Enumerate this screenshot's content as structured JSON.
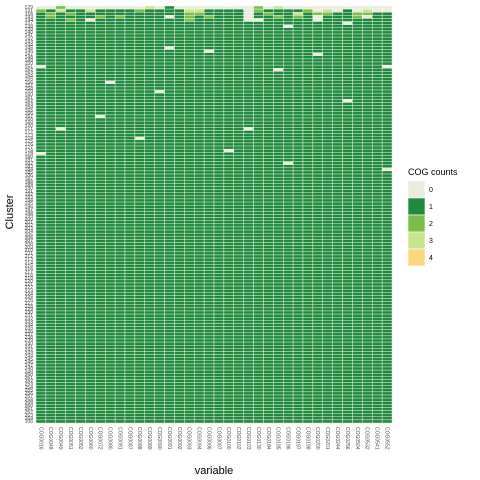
{
  "chart_data": {
    "type": "heatmap",
    "xlabel": "variable",
    "ylabel": "Cluster",
    "legend_title": "COG counts",
    "legend_position": "right",
    "legend": [
      {
        "value": 0,
        "color": "#ebebde"
      },
      {
        "value": 1,
        "color": "#1f8a3c"
      },
      {
        "value": 2,
        "color": "#7bbf4a"
      },
      {
        "value": 3,
        "color": "#c8e68e"
      },
      {
        "value": 4,
        "color": "#fed77f"
      }
    ],
    "x_labels": [
      "COG0016",
      "COG0048",
      "COG0049",
      "COG0051",
      "COG0052",
      "COG0060",
      "COG0072",
      "COG0080",
      "COG0081",
      "COG0087",
      "COG0088",
      "COG0089",
      "COG0090",
      "COG0091",
      "COG0092",
      "COG0093",
      "COG0094",
      "COG0096",
      "COG0097",
      "COG0100",
      "COG0102",
      "COG0103",
      "COG0130",
      "COG0184",
      "COG0185",
      "COG0186",
      "COG0197",
      "COG0198",
      "COG0200",
      "COG0201",
      "COG0244",
      "COG0256",
      "COG0504",
      "COG0532",
      "COG0541",
      "COG0552"
    ],
    "y_labels": [
      "129",
      "131",
      "116",
      "133",
      "134",
      "137",
      "138",
      "139",
      "140",
      "141",
      "142",
      "143",
      "144",
      "145",
      "146",
      "147",
      "148",
      "149",
      "150",
      "151",
      "152",
      "153",
      "154",
      "155",
      "156",
      "157",
      "158",
      "159",
      "160",
      "161",
      "162",
      "163",
      "164",
      "165",
      "166",
      "167",
      "168",
      "169",
      "170",
      "171",
      "172",
      "173",
      "174",
      "175",
      "176",
      "177",
      "178",
      "179",
      "180",
      "181",
      "182",
      "183",
      "184",
      "185",
      "186",
      "187",
      "188",
      "189",
      "190",
      "191",
      "192",
      "193",
      "194",
      "195",
      "196",
      "197",
      "198",
      "199",
      "200",
      "201",
      "202",
      "203",
      "204",
      "205",
      "206",
      "207",
      "208",
      "209",
      "210",
      "211",
      "212",
      "213",
      "214",
      "215",
      "216",
      "217",
      "218",
      "219",
      "220",
      "221",
      "222",
      "223",
      "224",
      "225",
      "226",
      "227",
      "228",
      "229",
      "230",
      "231",
      "232",
      "233",
      "234",
      "235",
      "236",
      "237",
      "238",
      "239",
      "240",
      "241",
      "242",
      "243",
      "244",
      "245",
      "246",
      "247",
      "248",
      "249",
      "250",
      "251",
      "252",
      "253",
      "254",
      "255",
      "256",
      "257",
      "258",
      "259",
      "260",
      "261",
      "262",
      "263",
      "264",
      "106"
    ],
    "matrix_rows": [
      "002000000003010000000020300000000000",
      "213113111121111331111021111203010300",
      "121211111111111221111012113122112211",
      "121111212111101212111011212101112011",
      "111210111111111211111001111101111111",
      "111111111111111111111111111111101111",
      "111111111111111111111111101111111111",
      "111111111111111111111111111111111111",
      "111111111111111111111111111111111111",
      "111111111111111111111111111111111111",
      "111111111111111111111111111111111111",
      "111111111111111111111111111111111111",
      "111111111111111111111111111111111111",
      "111111111111101111111111111111111111",
      "111111111111111110111111111111111111",
      "111111111111111111111111111101111111",
      "111111111111111111111111111111111111",
      "111111111111111111111111111111111111",
      "111111111111111111111111111111111111",
      "011111111111111111111111111111111110",
      "111111111111111111111111011111111111",
      "111111111111111111111111111111111111",
      "111111111111111111111111111111111111",
      "111111111111111111111111111111111111",
      "111111101111111111111111111111111111",
      "111111111111111111111111111111111111",
      "111111111111111111111111111111111111",
      "111111111111011111111111111111111111",
      "111111111111111111111111111111111111",
      "111111111111111111111111111111111111",
      "111111111111111111111111111111101111",
      "111111111111111111111111111111111111",
      "111111111111111111111111111111111111",
      "111111111111111111111111111111111111",
      "111111111111111111111111111111111111",
      "111111011111111111111111111111111111",
      "111111111111111111111111111111111111",
      "111111111111111111111111111111111111",
      "111111111111111111111111111111111111",
      "110111111111111111111011111111111111",
      "111111111111111111111111111111111111",
      "111111111111111111111111111111111111",
      "111111111101111111111111111111111111",
      "111111111111111111111111111111111111",
      "111111111111111111111111111111111111",
      "111111111111111111111111111111111111",
      "111111111111111111101111111111111111",
      "011111111111111111111111111111111111",
      "111111111111111111111111111111111111",
      "111111111111111111111111111111111111",
      "111111111111111111111111101111111111",
      "111111111111111111111111111111111111",
      "111111111111111111111111111111111110",
      "111111111111111111111111111111111111",
      "111111111111111111111111111111111111",
      "111111111111111111111111111111111111",
      "111111111111111111111111111111111111",
      "111111111111111111111111111111111111",
      "111111111111111111111111111111111111",
      "111111111111111111111111111111111111",
      "111111111111111111111111111111111111",
      "111111111111111111111111111111111111",
      "111111111111111111111111111111111111",
      "111111111111111111111111111111111111",
      "111111111111111111111111111111111111",
      "111111111111111111111111111111111111",
      "111111111111111111111111111111111111",
      "111111111111111111111111111111111111",
      "111111111111111111111111111111111111",
      "111111111111111111111111111111111111",
      "111111111111111111111111111111111111",
      "111111111111111111111111111111111111",
      "111111111111111111111111111111111111",
      "111111111111111111111111111111111111",
      "111111111111111111111111111111111111",
      "111111111111111111111111111111111111",
      "111111111111111111111111111111111111",
      "111111111111111111111111111111111111",
      "111111111111111111111111111111111111",
      "111111111111111111111111111111111111",
      "111111111111111111111111111111111111",
      "111111111111111111111111111111111111",
      "111111111111111111111111111111111111",
      "111111111111111111111111111111111111",
      "111111111111111111111111111111111111",
      "111111111111111111111111111111111111",
      "111111111111111111111111111111111111",
      "111111111111111111111111111111111111",
      "111111111111111111111111111111111111",
      "111111111111111111111111111111111111",
      "111111111111111111111111111111111111",
      "111111111111111111111111111111111111",
      "111111111111111111111111111111111111",
      "111111111111111111111111111111111111",
      "111111111111111111111111111111111111",
      "111111111111111111111111111111111111",
      "111111111111111111111111111111111111",
      "111111111111111111111111111111111111",
      "111111111111111111111111111111111111",
      "111111111111111111111111111111111111",
      "111111111111111111111111111111111111",
      "111111111111111111111111111111111111",
      "111111111111111111111111111111111111",
      "111111111111111111111111111111111111",
      "111111111111111111111111111111111111",
      "111111111111111111111111111111111111",
      "111111111111111111111111111111111111",
      "111111111111111111111111111111111111",
      "111111111111111111111111111111111111",
      "111111111111111111111111111111111111",
      "111111111111111111111111111111111111",
      "111111111111111111111111111111111111",
      "111111111111111111111111111111111111",
      "111111111111111111111111111111111111",
      "111111111111111111111111111111111111",
      "111111111111111111111111111111111111",
      "111111111111111111111111111111111111",
      "111111111111111111111111111111111111",
      "111111111111111111111111111111111111",
      "111111111111111111111111111111111111",
      "111111111111111111111111111111111111",
      "111111111111111111111111111111111111",
      "111111111111111111111111111111111111",
      "111111111111111111111111111111111111",
      "111111111111111111111111111111111111",
      "111111111111111111111111111111111111",
      "111111111111111111111111111111111111",
      "111111111111111111111111111111111111",
      "111111111111111111111111111111111111",
      "111111111111111111111111111111111111",
      "111111111111111111111111111111111111",
      "111111111111111111111111111111111111",
      "111111111111111111111111111111111111",
      "111111111111111111111111111111111111",
      "111111111111111111111111111111111111",
      "111111111111111111111111111111111111",
      "111111111111111111111111111111111111"
    ],
    "grid": true
  }
}
